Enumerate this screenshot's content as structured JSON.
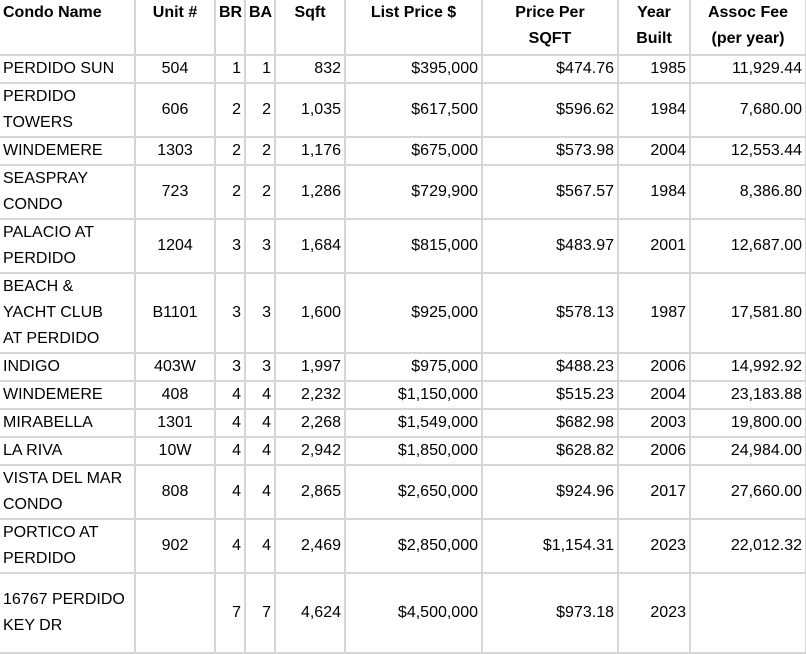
{
  "table": {
    "headers": [
      "Condo Name",
      "Unit #",
      "BR",
      "BA",
      "Sqft",
      "List Price $",
      "Price Per\nSQFT",
      "Year\nBuilt",
      "Assoc Fee\n(per year)"
    ],
    "rows": [
      [
        "PERDIDO SUN",
        "504",
        "1",
        "1",
        "832",
        "$395,000",
        "$474.76",
        "1985",
        "11,929.44"
      ],
      [
        "PERDIDO\nTOWERS",
        "606",
        "2",
        "2",
        "1,035",
        "$617,500",
        "$596.62",
        "1984",
        "7,680.00"
      ],
      [
        "WINDEMERE",
        "1303",
        "2",
        "2",
        "1,176",
        "$675,000",
        "$573.98",
        "2004",
        "12,553.44"
      ],
      [
        "SEASPRAY\nCONDO",
        "723",
        "2",
        "2",
        "1,286",
        "$729,900",
        "$567.57",
        "1984",
        "8,386.80"
      ],
      [
        "PALACIO AT\nPERDIDO",
        "1204",
        "3",
        "3",
        "1,684",
        "$815,000",
        "$483.97",
        "2001",
        "12,687.00"
      ],
      [
        "BEACH &\nYACHT CLUB\nAT PERDIDO",
        "B1101",
        "3",
        "3",
        "1,600",
        "$925,000",
        "$578.13",
        "1987",
        "17,581.80"
      ],
      [
        "INDIGO",
        "403W",
        "3",
        "3",
        "1,997",
        "$975,000",
        "$488.23",
        "2006",
        "14,992.92"
      ],
      [
        "WINDEMERE",
        "408",
        "4",
        "4",
        "2,232",
        "$1,150,000",
        "$515.23",
        "2004",
        "23,183.88"
      ],
      [
        "MIRABELLA",
        "1301",
        "4",
        "4",
        "2,268",
        "$1,549,000",
        "$682.98",
        "2003",
        "19,800.00"
      ],
      [
        "LA RIVA",
        "10W",
        "4",
        "4",
        "2,942",
        "$1,850,000",
        "$628.82",
        "2006",
        "24,984.00"
      ],
      [
        "VISTA DEL MAR\nCONDO",
        "808",
        "4",
        "4",
        "2,865",
        "$2,650,000",
        "$924.96",
        "2017",
        "27,660.00"
      ],
      [
        "PORTICO AT\nPERDIDO",
        "902",
        "4",
        "4",
        "2,469",
        "$2,850,000",
        "$1,154.31",
        "2023",
        "22,012.32"
      ],
      [
        "16767 PERDIDO\nKEY DR",
        "",
        "7",
        "7",
        "4,624",
        "$4,500,000",
        "$973.18",
        "2023",
        ""
      ]
    ]
  }
}
